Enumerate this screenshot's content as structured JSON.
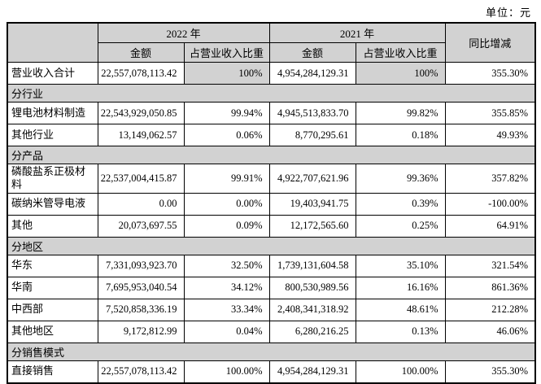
{
  "unit_label": "单位：元",
  "table": {
    "col_headers": {
      "year_2022": "2022 年",
      "year_2021": "2021 年",
      "amount_2022": "金额",
      "ratio_2022": "占营业收入比重",
      "amount_2021": "金额",
      "ratio_2021": "占营业收入比重",
      "yoy": "同比增减"
    },
    "rows": [
      {
        "type": "data",
        "label": "营业收入合计",
        "cells": [
          "22,557,078,113.42",
          "100%",
          "4,954,284,129.31",
          "100%",
          "355.30%"
        ],
        "gray_cells": [
          1,
          3
        ]
      },
      {
        "type": "section",
        "label": "分行业"
      },
      {
        "type": "data",
        "label": "锂电池材料制造",
        "cells": [
          "22,543,929,050.85",
          "99.94%",
          "4,945,513,833.70",
          "99.82%",
          "355.85%"
        ],
        "gray_cells": []
      },
      {
        "type": "data",
        "label": "其他行业",
        "cells": [
          "13,149,062.57",
          "0.06%",
          "8,770,295.61",
          "0.18%",
          "49.93%"
        ],
        "gray_cells": []
      },
      {
        "type": "section",
        "label": "分产品"
      },
      {
        "type": "data",
        "label": "磷酸盐系正极材料",
        "cells": [
          "22,537,004,415.87",
          "99.91%",
          "4,922,707,621.96",
          "99.36%",
          "357.82%"
        ],
        "gray_cells": []
      },
      {
        "type": "data",
        "label": "碳纳米管导电液",
        "cells": [
          "0.00",
          "0.00%",
          "19,403,941.75",
          "0.39%",
          "-100.00%"
        ],
        "gray_cells": []
      },
      {
        "type": "data",
        "label": "其他",
        "cells": [
          "20,073,697.55",
          "0.09%",
          "12,172,565.60",
          "0.25%",
          "64.91%"
        ],
        "gray_cells": []
      },
      {
        "type": "section",
        "label": "分地区"
      },
      {
        "type": "data",
        "label": "华东",
        "cells": [
          "7,331,093,923.70",
          "32.50%",
          "1,739,131,604.58",
          "35.10%",
          "321.54%"
        ],
        "gray_cells": []
      },
      {
        "type": "data",
        "label": "华南",
        "cells": [
          "7,695,953,040.54",
          "34.12%",
          "800,530,989.56",
          "16.16%",
          "861.36%"
        ],
        "gray_cells": []
      },
      {
        "type": "data",
        "label": "中西部",
        "cells": [
          "7,520,858,336.19",
          "33.34%",
          "2,408,341,318.92",
          "48.61%",
          "212.28%"
        ],
        "gray_cells": []
      },
      {
        "type": "data",
        "label": "其他地区",
        "cells": [
          "9,172,812.99",
          "0.04%",
          "6,280,216.25",
          "0.13%",
          "46.06%"
        ],
        "gray_cells": []
      },
      {
        "type": "section",
        "label": "分销售模式"
      },
      {
        "type": "data",
        "label": "直接销售",
        "cells": [
          "22,557,078,113.42",
          "100.00%",
          "4,954,284,129.31",
          "100.00%",
          "355.30%"
        ],
        "gray_cells": []
      }
    ]
  }
}
